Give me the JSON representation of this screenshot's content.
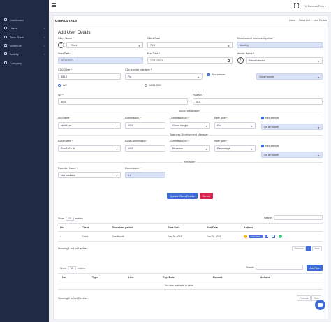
{
  "sidebar": {
    "items": [
      {
        "label": "Dashboard",
        "icon": "dashboard-icon"
      },
      {
        "label": "Users",
        "icon": "users-icon"
      },
      {
        "label": "Time Sheet",
        "icon": "clock-icon"
      },
      {
        "label": "Schedule",
        "icon": "calendar-icon"
      },
      {
        "label": "Activity",
        "icon": "activity-icon"
      },
      {
        "label": "Company",
        "icon": "building-icon"
      }
    ]
  },
  "topbar": {
    "user_label": "Hi, Ramesh Peta ▾"
  },
  "page": {
    "title": "USER DETAILS",
    "breadcrumb": [
      "Users",
      "Users List",
      "User Details"
    ],
    "heading": "Add User Details"
  },
  "form": {
    "client_name_label": "Client Name",
    "client_value": "Client",
    "client_rate_label": "Client Rate",
    "client_rate_value": "75.0",
    "submit_period_label": "Select submit time sheet period",
    "submit_period_value": "Monthly",
    "start_date_label": "Start Date",
    "start_date_value": "02/10/2021",
    "end_date_label": "End Date",
    "end_date_value": "12/31/2021",
    "vendor_label": "Vendor Name",
    "vendor_value": "Select Vendor",
    "c2c_label": "C2C/Other",
    "c2c_value": "350.0",
    "c2c_other_label": "C2c or other rate type",
    "c2c_other_value": "Fix",
    "recurrence_label": "Recurrence",
    "recurrence_value": "On all month",
    "radio_w2": "W2",
    "radio_1099": "1099-C2C",
    "w2_label": "W2",
    "w2_value": "50.0",
    "fica_label": "Fica tax",
    "fica_value": "15.0",
    "account_manager_section": "Account Manager",
    "am_name_label": "AM Name",
    "am_name_value": "ramM pal",
    "am_commission_label": "Commission",
    "am_commission_value": "10.0",
    "am_commission_on_label": "Commission on",
    "am_commission_on_value": "Gross margin",
    "am_rate_type_label": "Rate type",
    "am_rate_type_value": "Fix",
    "am_recurrence_label": "Recurrence",
    "am_recurrence_value": "On all month",
    "bdm_section": "Business Development Manager",
    "bdm_name_label": "BDM Name",
    "bdm_name_value": "Bdm1kFa fix",
    "bdm_commission_label": "BDM Commission",
    "bdm_commission_value": "10.0",
    "bdm_commission_on_label": "Commission on",
    "bdm_commission_on_value": "Revenue",
    "bdm_rate_type_label": "Rate type",
    "bdm_rate_type_value": "Percentage",
    "bdm_recurrence_label": "Recurrence",
    "bdm_recurrence_value": "On all month",
    "recruiter_section": "Recruiter",
    "recruiter_name_label": "Recruiter Name",
    "recruiter_name_value": "Not available",
    "recruiter_commission_label": "Commission",
    "recruiter_commission_value": "0.0",
    "update_button": "Update Client Details",
    "cancel_button": "Cancel"
  },
  "table1": {
    "show_label": "Show",
    "entries_value": "10",
    "entries_label": "entries",
    "search_label": "Search:",
    "headers": [
      "No",
      "Client",
      "Timesheet period",
      "Start Date",
      "End Date",
      "Actions"
    ],
    "rows": [
      {
        "no": "1",
        "client": "Client",
        "period": "One Month",
        "start": "Feb-10-2021",
        "end": "Dec-31-2021",
        "badge": "Client Details"
      }
    ],
    "info": "Showing 1 to 1 of 1 entries",
    "pagination": [
      "Previous",
      "1",
      "Next"
    ]
  },
  "table2": {
    "show_label": "Show",
    "entries_value": "10",
    "entries_label": "entries",
    "search_label": "Search:",
    "add_button": "Add Files",
    "headers": [
      "No",
      "Type",
      "Link",
      "Exp. Date",
      "Remark",
      "Actions"
    ],
    "empty": "No data available in table",
    "info": "Showing 0 to 0 of 0 entries",
    "pagination": [
      "Previous",
      "Next"
    ]
  },
  "colors": {
    "sidebar": "#1f2a44",
    "primary": "#3f6ad8",
    "danger": "#d92550",
    "success": "#3ac47d",
    "warning": "#f7b924",
    "input_readonly": "#dbe3f9"
  }
}
